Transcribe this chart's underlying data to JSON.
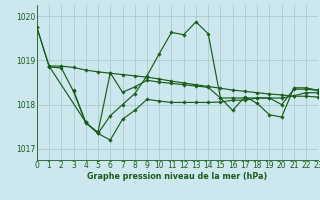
{
  "title": "Graphe pression niveau de la mer (hPa)",
  "background_color": "#cce8ee",
  "plot_bg": "#cce8ee",
  "grid_color": "#aacccc",
  "line_color": "#1a5c1a",
  "title_bg": "#2d6e2d",
  "title_fg": "#ffffff",
  "xlim": [
    0,
    23
  ],
  "ylim": [
    1016.75,
    1020.25
  ],
  "yticks": [
    1017,
    1018,
    1019,
    1020
  ],
  "xticks": [
    0,
    1,
    2,
    3,
    4,
    5,
    6,
    7,
    8,
    9,
    10,
    11,
    12,
    13,
    14,
    15,
    16,
    17,
    18,
    19,
    20,
    21,
    22,
    23
  ],
  "series": [
    {
      "x": [
        0,
        1,
        2,
        3,
        4,
        5,
        6,
        7,
        8,
        9,
        10,
        11,
        12,
        13,
        14,
        15,
        16,
        17,
        18,
        19,
        20,
        21,
        22,
        23
      ],
      "y": [
        1019.75,
        1018.87,
        1018.87,
        1018.84,
        1018.78,
        1018.74,
        1018.71,
        1018.68,
        1018.65,
        1018.62,
        1018.58,
        1018.53,
        1018.49,
        1018.45,
        1018.41,
        1018.37,
        1018.33,
        1018.3,
        1018.27,
        1018.24,
        1018.22,
        1018.19,
        1018.19,
        1018.17
      ]
    },
    {
      "x": [
        0,
        1,
        4,
        5,
        6,
        7,
        8,
        9,
        10,
        11,
        12,
        13,
        14,
        15,
        16,
        17,
        18,
        19,
        20,
        21,
        22,
        23
      ],
      "y": [
        1019.75,
        1018.87,
        1017.6,
        1017.35,
        1017.75,
        1018.0,
        1018.25,
        1018.65,
        1019.15,
        1019.63,
        1019.58,
        1019.87,
        1019.6,
        1018.15,
        1017.87,
        1018.18,
        1018.03,
        1017.77,
        1017.72,
        1018.38,
        1018.38,
        1018.32
      ]
    },
    {
      "x": [
        3,
        4,
        5,
        6,
        7,
        8,
        9,
        10,
        11,
        12,
        13,
        14,
        15,
        16,
        17,
        18,
        19,
        20,
        21,
        22,
        23
      ],
      "y": [
        1018.32,
        1017.6,
        1017.35,
        1017.2,
        1017.67,
        1017.87,
        1018.12,
        1018.08,
        1018.05,
        1018.05,
        1018.05,
        1018.05,
        1018.06,
        1018.1,
        1018.1,
        1018.15,
        1018.15,
        1018.15,
        1018.2,
        1018.27,
        1018.27
      ]
    },
    {
      "x": [
        1,
        2,
        3,
        4,
        5,
        6,
        7,
        8,
        9,
        10,
        11,
        12,
        13,
        14,
        15,
        16,
        17,
        18,
        19,
        20,
        21,
        22,
        23
      ],
      "y": [
        1018.85,
        1018.83,
        1018.3,
        1017.58,
        1017.38,
        1018.72,
        1018.28,
        1018.4,
        1018.55,
        1018.51,
        1018.48,
        1018.45,
        1018.42,
        1018.39,
        1018.15,
        1018.15,
        1018.15,
        1018.15,
        1018.15,
        1018.0,
        1018.35,
        1018.35,
        1018.32
      ]
    }
  ]
}
